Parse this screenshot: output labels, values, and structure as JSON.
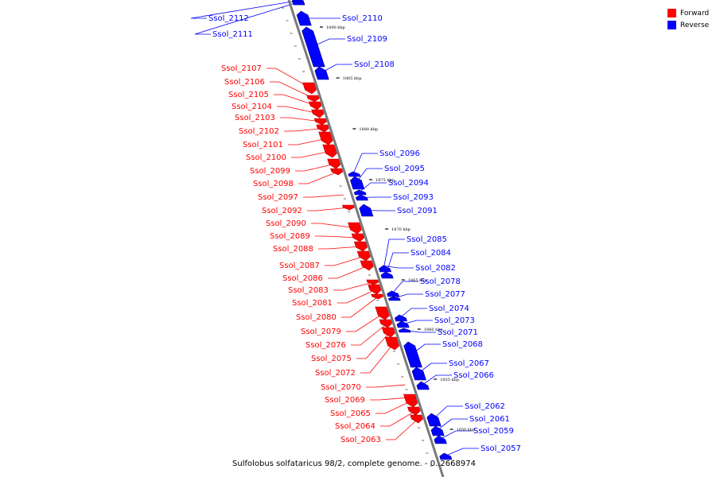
{
  "colors": {
    "forward": "#ff0000",
    "reverse": "#0000ff",
    "axis": "#7a7a7a"
  },
  "legend": [
    {
      "label": "Forward",
      "color": "#ff0000"
    },
    {
      "label": "Reverse",
      "color": "#0000ff"
    }
  ],
  "caption": "Sulfolobus solfataricus 98/2, complete genome. - 0..2668974",
  "kbp_ticks": [
    "1890 kbp",
    "1885 kbp",
    "1880 kbp",
    "1875 kbp",
    "1870 kbp",
    "1865 kbp",
    "1860 kbp",
    "1855 kbp",
    "1850 kbp"
  ],
  "genes": [
    {
      "name": "Ssol_2112",
      "strand": "reverse"
    },
    {
      "name": "Ssol_2111",
      "strand": "reverse"
    },
    {
      "name": "Ssol_2110",
      "strand": "reverse"
    },
    {
      "name": "Ssol_2109",
      "strand": "reverse"
    },
    {
      "name": "Ssol_2108",
      "strand": "reverse"
    },
    {
      "name": "Ssol_2107",
      "strand": "forward"
    },
    {
      "name": "Ssol_2106",
      "strand": "forward"
    },
    {
      "name": "Ssol_2105",
      "strand": "forward"
    },
    {
      "name": "Ssol_2104",
      "strand": "forward"
    },
    {
      "name": "Ssol_2103",
      "strand": "forward"
    },
    {
      "name": "Ssol_2102",
      "strand": "forward"
    },
    {
      "name": "Ssol_2101",
      "strand": "forward"
    },
    {
      "name": "Ssol_2100",
      "strand": "forward"
    },
    {
      "name": "Ssol_2099",
      "strand": "forward"
    },
    {
      "name": "Ssol_2098",
      "strand": "forward"
    },
    {
      "name": "Ssol_2097",
      "strand": "forward"
    },
    {
      "name": "Ssol_2096",
      "strand": "reverse"
    },
    {
      "name": "Ssol_2095",
      "strand": "reverse"
    },
    {
      "name": "Ssol_2094",
      "strand": "reverse"
    },
    {
      "name": "Ssol_2093",
      "strand": "reverse"
    },
    {
      "name": "Ssol_2092",
      "strand": "forward"
    },
    {
      "name": "Ssol_2091",
      "strand": "reverse"
    },
    {
      "name": "Ssol_2090",
      "strand": "forward"
    },
    {
      "name": "Ssol_2089",
      "strand": "forward"
    },
    {
      "name": "Ssol_2088",
      "strand": "forward"
    },
    {
      "name": "Ssol_2087",
      "strand": "forward"
    },
    {
      "name": "Ssol_2086",
      "strand": "forward"
    },
    {
      "name": "Ssol_2085",
      "strand": "reverse"
    },
    {
      "name": "Ssol_2084",
      "strand": "reverse"
    },
    {
      "name": "Ssol_2083",
      "strand": "forward"
    },
    {
      "name": "Ssol_2082",
      "strand": "reverse"
    },
    {
      "name": "Ssol_2081",
      "strand": "forward"
    },
    {
      "name": "Ssol_2080",
      "strand": "forward"
    },
    {
      "name": "Ssol_2079",
      "strand": "forward"
    },
    {
      "name": "Ssol_2078",
      "strand": "reverse"
    },
    {
      "name": "Ssol_2077",
      "strand": "reverse"
    },
    {
      "name": "Ssol_2076",
      "strand": "forward"
    },
    {
      "name": "Ssol_2075",
      "strand": "forward"
    },
    {
      "name": "Ssol_2074",
      "strand": "reverse"
    },
    {
      "name": "Ssol_2073",
      "strand": "reverse"
    },
    {
      "name": "Ssol_2072",
      "strand": "forward"
    },
    {
      "name": "Ssol_2071",
      "strand": "reverse"
    },
    {
      "name": "Ssol_2070",
      "strand": "forward"
    },
    {
      "name": "Ssol_2069",
      "strand": "forward"
    },
    {
      "name": "Ssol_2068",
      "strand": "reverse"
    },
    {
      "name": "Ssol_2067",
      "strand": "reverse"
    },
    {
      "name": "Ssol_2066",
      "strand": "reverse"
    },
    {
      "name": "Ssol_2065",
      "strand": "forward"
    },
    {
      "name": "Ssol_2064",
      "strand": "forward"
    },
    {
      "name": "Ssol_2063",
      "strand": "forward"
    },
    {
      "name": "Ssol_2062",
      "strand": "reverse"
    },
    {
      "name": "Ssol_2061",
      "strand": "reverse"
    },
    {
      "name": "Ssol_2059",
      "strand": "reverse"
    },
    {
      "name": "Ssol_2057",
      "strand": "reverse"
    }
  ]
}
